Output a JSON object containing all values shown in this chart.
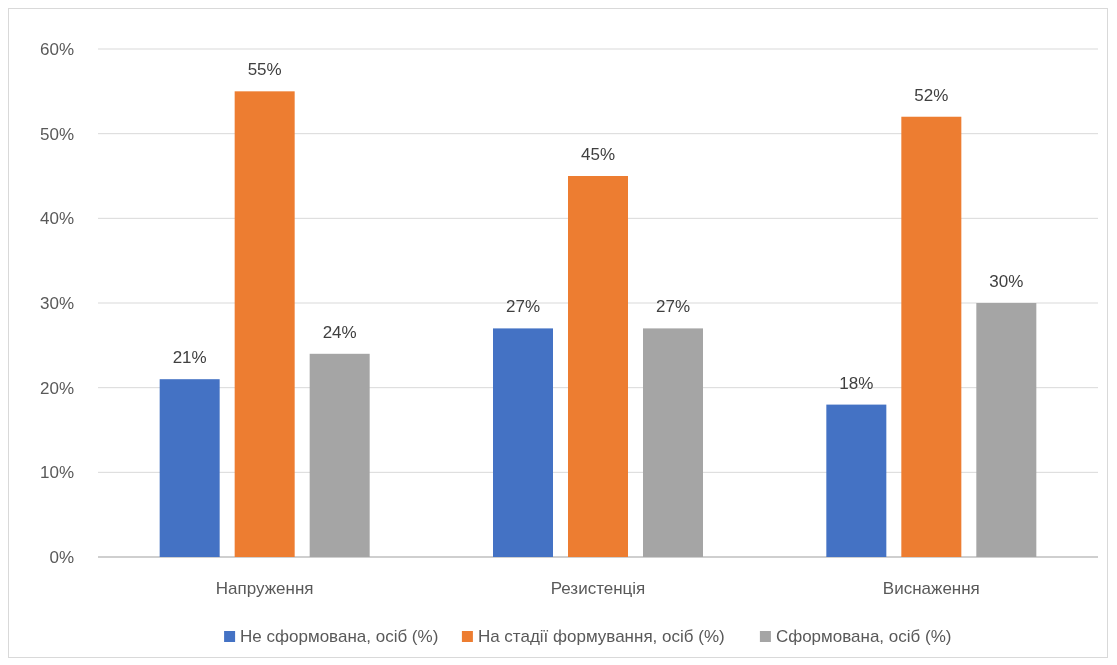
{
  "chart_data": {
    "type": "bar",
    "categories": [
      "Напруження",
      "Резистенція",
      "Виснаження"
    ],
    "series": [
      {
        "name": "Не сформована, осіб (%)",
        "color": "#4472c4",
        "values": [
          21,
          27,
          18
        ],
        "value_labels": [
          "21%",
          "27%",
          "18%"
        ]
      },
      {
        "name": "На стадії формування, осіб (%)",
        "color": "#ed7d31",
        "values": [
          55,
          45,
          52
        ],
        "value_labels": [
          "55%",
          "45%",
          "52%"
        ]
      },
      {
        "name": "Сформована, осіб (%)",
        "color": "#a5a5a5",
        "values": [
          24,
          27,
          30
        ],
        "value_labels": [
          "24%",
          "27%",
          "30%"
        ]
      }
    ],
    "ylim": [
      0,
      60
    ],
    "yticks": [
      {
        "value": 0,
        "label": "0%"
      },
      {
        "value": 10,
        "label": "10%"
      },
      {
        "value": 20,
        "label": "20%"
      },
      {
        "value": 30,
        "label": "30%"
      },
      {
        "value": 40,
        "label": "40%"
      },
      {
        "value": 50,
        "label": "50%"
      },
      {
        "value": 60,
        "label": "60%"
      }
    ],
    "grid": "y",
    "legend": "bottom"
  }
}
